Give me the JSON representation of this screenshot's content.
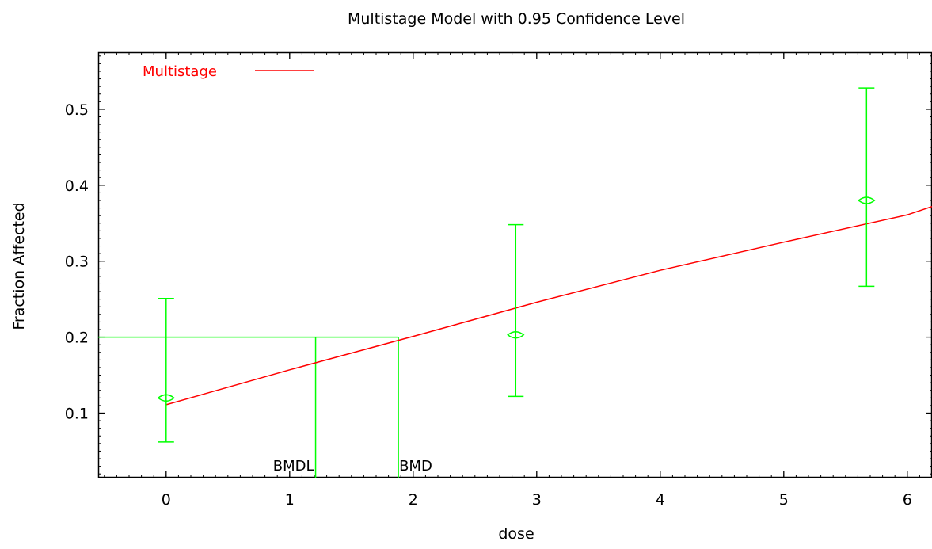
{
  "chart_data": {
    "type": "line",
    "title": "Multistage Model with 0.95 Confidence Level",
    "xlabel": "dose",
    "ylabel": "Fraction Affected",
    "xlim": [
      -0.55,
      6.2
    ],
    "ylim": [
      0.015,
      0.575
    ],
    "x_ticks": [
      0,
      1,
      2,
      3,
      4,
      5,
      6
    ],
    "y_ticks": [
      0.1,
      0.2,
      0.3,
      0.4,
      0.5
    ],
    "x_tick_labels": [
      "0",
      "1",
      "2",
      "3",
      "4",
      "5",
      "6"
    ],
    "y_tick_labels": [
      "0.1",
      "0.2",
      "0.3",
      "0.4",
      "0.5"
    ],
    "legend": {
      "placement": "top-left",
      "entries": [
        {
          "name": "Multistage",
          "color": "#ff0000"
        }
      ]
    },
    "series": [
      {
        "name": "Multistage",
        "kind": "line",
        "color": "#ff0000",
        "x": [
          0,
          1,
          2,
          3,
          4,
          5,
          6,
          6.2
        ],
        "y": [
          0.111,
          0.157,
          0.201,
          0.246,
          0.288,
          0.325,
          0.361,
          0.372
        ]
      },
      {
        "kind": "points-with-errorbars",
        "color": "#00ff00",
        "x": [
          0,
          2.83,
          5.67
        ],
        "y": [
          0.12,
          0.203,
          0.38
        ],
        "lower": [
          0.062,
          0.122,
          0.267
        ],
        "upper": [
          0.251,
          0.348,
          0.528
        ]
      }
    ],
    "bmr": {
      "level": 0.2,
      "color": "#00ff00"
    },
    "annotations": [
      {
        "label": "BMDL",
        "x": 1.21
      },
      {
        "label": "BMD",
        "x": 1.88
      }
    ]
  }
}
